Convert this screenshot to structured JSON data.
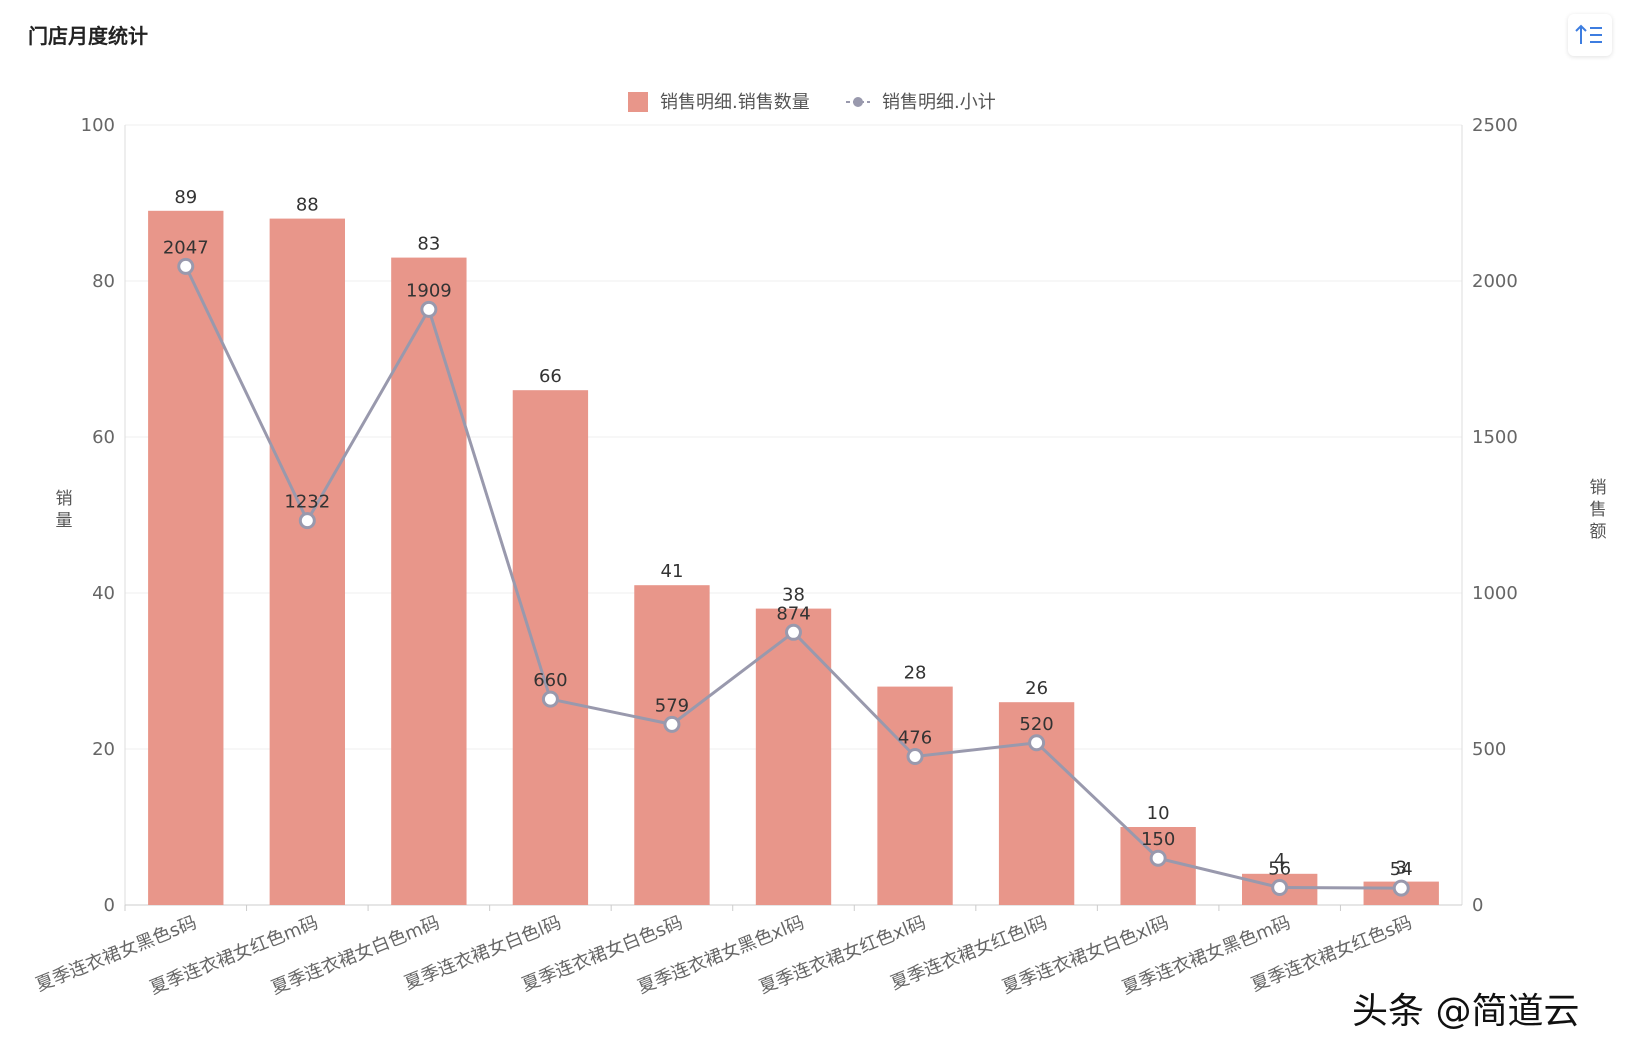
{
  "header": {
    "title": "门店月度统计",
    "sort_icon": "sort-ascending-icon"
  },
  "watermark": "头条 @简道云",
  "chart_data": {
    "type": "bar",
    "categories": [
      "夏季连衣裙女黑色s码",
      "夏季连衣裙女红色m码",
      "夏季连衣裙女白色m码",
      "夏季连衣裙女白色l码",
      "夏季连衣裙女白色s码",
      "夏季连衣裙女黑色xl码",
      "夏季连衣裙女红色xl码",
      "夏季连衣裙女红色l码",
      "夏季连衣裙女白色xl码",
      "夏季连衣裙女黑色m码",
      "夏季连衣裙女红色s码"
    ],
    "series": [
      {
        "name": "销售明细.销售数量",
        "type": "bar",
        "axis": "left",
        "color": "#e8968a",
        "values": [
          89,
          88,
          83,
          66,
          41,
          38,
          28,
          26,
          10,
          4,
          3
        ]
      },
      {
        "name": "销售明细.小计",
        "type": "line",
        "axis": "right",
        "color": "#9999ad",
        "values": [
          2047,
          1232,
          1909,
          660,
          579,
          874,
          476,
          520,
          150,
          56,
          54
        ]
      }
    ],
    "left_axis": {
      "title": "销量",
      "range": [
        0,
        100
      ],
      "ticks": [
        0,
        20,
        40,
        60,
        80,
        100
      ]
    },
    "right_axis": {
      "title": "销售额",
      "range": [
        0,
        2500
      ],
      "ticks": [
        0,
        500,
        1000,
        1500,
        2000,
        2500
      ]
    },
    "grid": true,
    "legend": "top-center"
  }
}
